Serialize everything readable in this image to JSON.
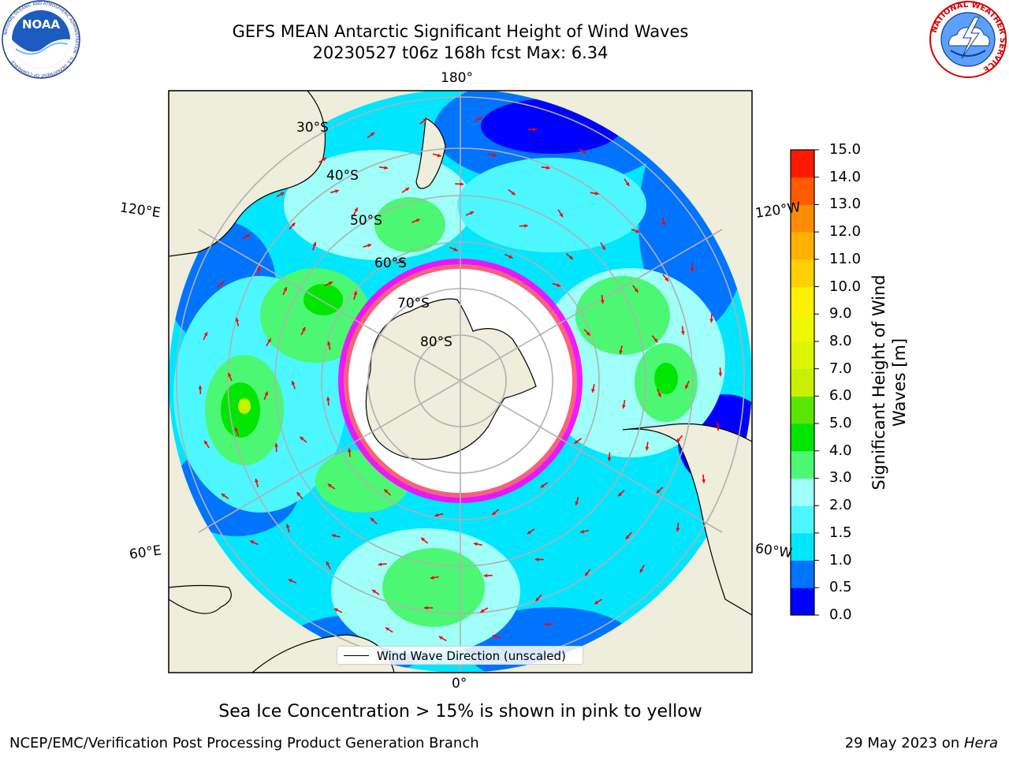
{
  "header": {
    "title_line1": "GEFS MEAN Antarctic Significant Height of Wind Waves",
    "title_line2": "20230527 t06z 168h fcst   Max: 6.34"
  },
  "logos": {
    "left": "noaa-logo",
    "right": "national-weather-service-logo",
    "left_text": "NOAA",
    "left_ring_text": "NATIONAL OCEANIC AND ATMOSPHERIC ADMINISTRATION · U.S. DEPARTMENT OF COMMERCE",
    "right_ring_text": "NATIONAL WEATHER SERVICE"
  },
  "map": {
    "projection": "south-polar-stereographic",
    "longitude_labels": [
      "180°",
      "120°E",
      "120°W",
      "60°E",
      "60°W",
      "0°"
    ],
    "latitude_labels": [
      "30°S",
      "40°S",
      "50°S",
      "60°S",
      "70°S",
      "80°S"
    ],
    "colors": {
      "land": "#efeddb",
      "ice": "#ffffff",
      "arrows": "#ff0000",
      "gridlines": "#b0b0b0",
      "ice_edge": [
        "#ff00ff",
        "#ffb000"
      ]
    },
    "legend_label": "Wind Wave Direction (unscaled)"
  },
  "colorbar": {
    "label": "Significant Height of Wind Waves [m]",
    "ticks": [
      "15.0",
      "14.0",
      "13.0",
      "12.0",
      "11.0",
      "10.0",
      "9.0",
      "8.0",
      "7.0",
      "6.0",
      "5.0",
      "4.0",
      "3.0",
      "2.0",
      "1.5",
      "1.0",
      "0.5",
      "0.0"
    ],
    "levels": [
      0.0,
      0.5,
      1.0,
      1.5,
      2.0,
      3.0,
      4.0,
      5.0,
      6.0,
      7.0,
      8.0,
      9.0,
      10.0,
      11.0,
      12.0,
      13.0,
      14.0,
      15.0
    ],
    "colors": [
      "#0000ff",
      "#0073ff",
      "#00e6ff",
      "#4df7ff",
      "#a0fff8",
      "#4cf773",
      "#00e600",
      "#5ae600",
      "#c8f000",
      "#dcf500",
      "#f0f800",
      "#ffef00",
      "#ffd000",
      "#ffb000",
      "#ff8c00",
      "#ff5a00",
      "#ff1900"
    ]
  },
  "footer": {
    "note": "Sea Ice Concentration > 15% is shown in pink to yellow",
    "left": "NCEP/EMC/Verification Post Processing Product Generation Branch",
    "right_prefix": "29 May 2023 on ",
    "right_machine": "Hera"
  }
}
